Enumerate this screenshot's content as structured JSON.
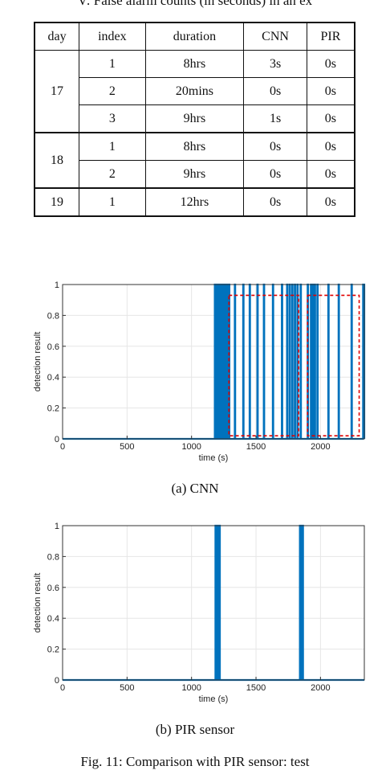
{
  "table_caption": "V: False alarm counts (in seconds) in an ex",
  "table": {
    "headers": [
      "day",
      "index",
      "duration",
      "CNN",
      "PIR"
    ],
    "groups": [
      {
        "day": "17",
        "rows": [
          {
            "index": "1",
            "duration": "8hrs",
            "cnn": "3s",
            "pir": "0s"
          },
          {
            "index": "2",
            "duration": "20mins",
            "cnn": "0s",
            "pir": "0s"
          },
          {
            "index": "3",
            "duration": "9hrs",
            "cnn": "1s",
            "pir": "0s"
          }
        ]
      },
      {
        "day": "18",
        "rows": [
          {
            "index": "1",
            "duration": "8hrs",
            "cnn": "0s",
            "pir": "0s"
          },
          {
            "index": "2",
            "duration": "9hrs",
            "cnn": "0s",
            "pir": "0s"
          }
        ]
      },
      {
        "day": "19",
        "rows": [
          {
            "index": "1",
            "duration": "12hrs",
            "cnn": "0s",
            "pir": "0s"
          }
        ]
      }
    ]
  },
  "chart_data": [
    {
      "type": "line",
      "caption": "(a) CNN",
      "xlabel": "time (s)",
      "ylabel": "detection result",
      "xlim": [
        0,
        2340
      ],
      "ylim": [
        0,
        1
      ],
      "xticks": [
        "0",
        "500",
        "1000",
        "1500",
        "2000"
      ],
      "yticks": [
        "0",
        "0.2",
        "0.4",
        "0.6",
        "0.8",
        "1"
      ],
      "line_color": "#0072bd",
      "pulses": [
        [
          1180,
          1190
        ],
        [
          1200,
          1204
        ],
        [
          1210,
          1214
        ],
        [
          1220,
          1226
        ],
        [
          1232,
          1236
        ],
        [
          1242,
          1246
        ],
        [
          1250,
          1254
        ],
        [
          1262,
          1268
        ],
        [
          1275,
          1279
        ],
        [
          1290,
          1294
        ],
        [
          1335,
          1339
        ],
        [
          1400,
          1404
        ],
        [
          1450,
          1454
        ],
        [
          1510,
          1514
        ],
        [
          1560,
          1564
        ],
        [
          1630,
          1634
        ],
        [
          1700,
          1704
        ],
        [
          1740,
          1744
        ],
        [
          1760,
          1764
        ],
        [
          1780,
          1784
        ],
        [
          1800,
          1804
        ],
        [
          1820,
          1824
        ],
        [
          1845,
          1849
        ],
        [
          1900,
          1904
        ],
        [
          1925,
          1929
        ],
        [
          1940,
          1944
        ],
        [
          1955,
          1959
        ],
        [
          1975,
          1979
        ],
        [
          2060,
          2064
        ],
        [
          2140,
          2144
        ],
        [
          2240,
          2244
        ],
        [
          2330,
          2340
        ]
      ],
      "annotations": [
        {
          "type": "dashed-box",
          "color": "#e00000",
          "x": [
            1290,
            1830
          ],
          "y": [
            0.02,
            0.93
          ]
        },
        {
          "type": "dashed-box",
          "color": "#e00000",
          "x": [
            1900,
            2300
          ],
          "y": [
            0.02,
            0.93
          ]
        }
      ]
    },
    {
      "type": "line",
      "caption": "(b) PIR sensor",
      "xlabel": "time (s)",
      "ylabel": "detection result",
      "xlim": [
        0,
        2340
      ],
      "ylim": [
        0,
        1
      ],
      "xticks": [
        "0",
        "500",
        "1000",
        "1500",
        "2000"
      ],
      "yticks": [
        "0",
        "0.2",
        "0.4",
        "0.6",
        "0.8",
        "1"
      ],
      "line_color": "#0072bd",
      "pulses": [
        [
          1185,
          1190
        ],
        [
          1196,
          1200
        ],
        [
          1205,
          1210
        ],
        [
          1215,
          1220
        ],
        [
          1840,
          1845
        ],
        [
          1850,
          1855
        ],
        [
          1860,
          1865
        ]
      ]
    }
  ],
  "figure_caption": "Fig. 11: Comparison with PIR sensor: test"
}
